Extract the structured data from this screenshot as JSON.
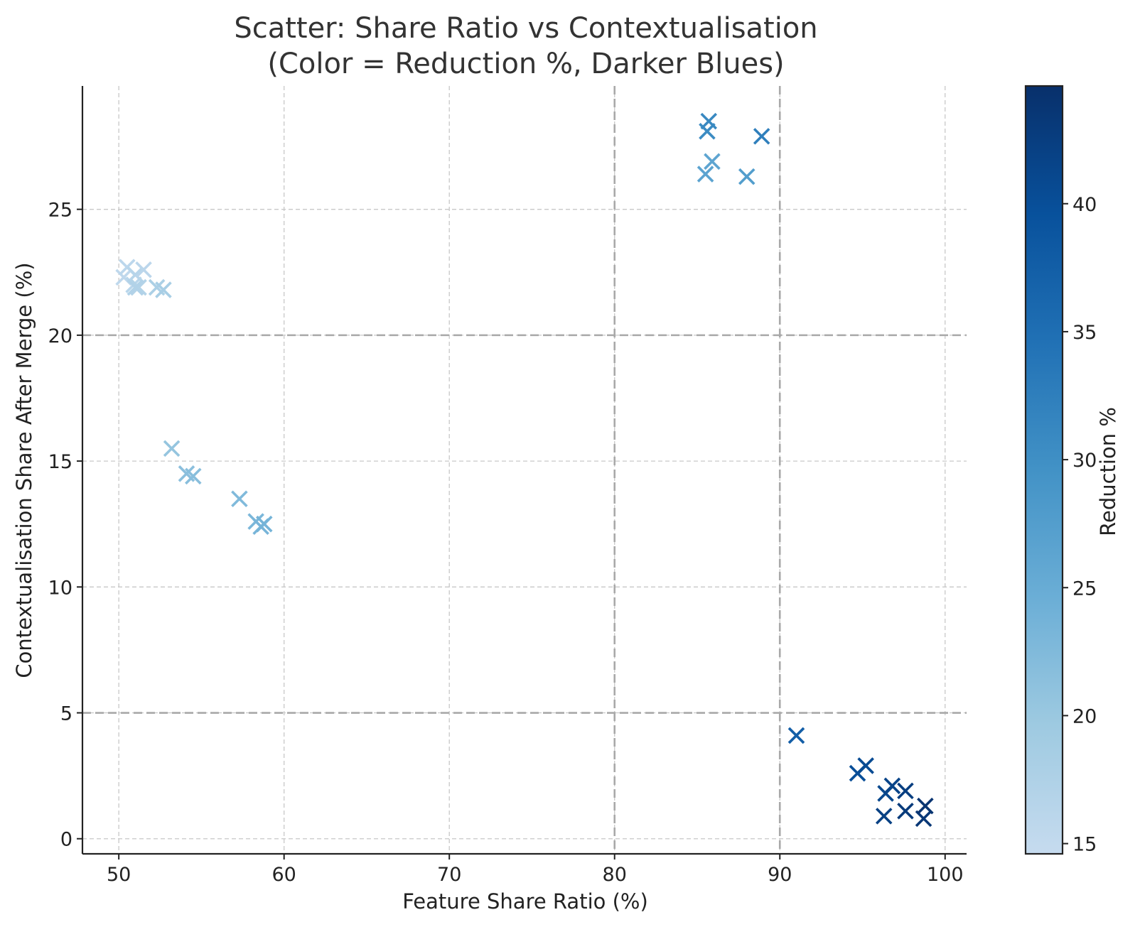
{
  "chart_data": {
    "type": "scatter",
    "title": [
      "Scatter: Share Ratio vs Contextualisation",
      "(Color = Reduction %, Darker Blues)"
    ],
    "xlabel": "Feature Share Ratio (%)",
    "ylabel": "Contextualisation Share After Merge (%)",
    "xlim": [
      47.8,
      101.3
    ],
    "ylim": [
      -0.6,
      29.9
    ],
    "xticks": [
      50,
      60,
      70,
      80,
      90,
      100
    ],
    "yticks": [
      0,
      5,
      10,
      15,
      20,
      25
    ],
    "grid": true,
    "marker": "x",
    "reference_lines": {
      "vertical": [
        80,
        90
      ],
      "horizontal": [
        5,
        20
      ]
    },
    "colorbar": {
      "label": "Reduction %",
      "range": [
        14.6,
        44.6
      ],
      "ticks": [
        15,
        20,
        25,
        30,
        35,
        40
      ],
      "colormap": "Blues",
      "colors": [
        "#c6dbef",
        "#9ecae1",
        "#6baed6",
        "#4292c6",
        "#2171b5",
        "#08519c",
        "#08306b"
      ]
    },
    "points": [
      {
        "x": 50.3,
        "y": 22.3,
        "c": 15.5
      },
      {
        "x": 50.5,
        "y": 22.7,
        "c": 15.8
      },
      {
        "x": 50.9,
        "y": 22.0,
        "c": 16.2
      },
      {
        "x": 51.0,
        "y": 22.4,
        "c": 16.5
      },
      {
        "x": 51.2,
        "y": 21.9,
        "c": 17.0
      },
      {
        "x": 51.5,
        "y": 22.6,
        "c": 16.0
      },
      {
        "x": 51.0,
        "y": 21.9,
        "c": 17.2
      },
      {
        "x": 52.3,
        "y": 21.9,
        "c": 17.8
      },
      {
        "x": 52.7,
        "y": 21.8,
        "c": 18.3
      },
      {
        "x": 53.2,
        "y": 15.5,
        "c": 20.5
      },
      {
        "x": 54.1,
        "y": 14.5,
        "c": 21.5
      },
      {
        "x": 54.5,
        "y": 14.4,
        "c": 21.8
      },
      {
        "x": 57.3,
        "y": 13.5,
        "c": 22.5
      },
      {
        "x": 58.3,
        "y": 12.6,
        "c": 23.0
      },
      {
        "x": 58.6,
        "y": 12.4,
        "c": 23.3
      },
      {
        "x": 58.8,
        "y": 12.5,
        "c": 23.6
      },
      {
        "x": 85.5,
        "y": 26.4,
        "c": 26.5
      },
      {
        "x": 85.9,
        "y": 26.9,
        "c": 26.2
      },
      {
        "x": 85.6,
        "y": 28.1,
        "c": 30.5
      },
      {
        "x": 85.7,
        "y": 28.5,
        "c": 31.0
      },
      {
        "x": 88.0,
        "y": 26.3,
        "c": 27.5
      },
      {
        "x": 88.9,
        "y": 27.9,
        "c": 32.5
      },
      {
        "x": 91.0,
        "y": 4.1,
        "c": 37.5
      },
      {
        "x": 94.7,
        "y": 2.6,
        "c": 40.0
      },
      {
        "x": 95.2,
        "y": 2.9,
        "c": 40.5
      },
      {
        "x": 96.4,
        "y": 1.8,
        "c": 41.0
      },
      {
        "x": 96.8,
        "y": 2.1,
        "c": 41.5
      },
      {
        "x": 96.3,
        "y": 0.9,
        "c": 42.0
      },
      {
        "x": 97.6,
        "y": 1.9,
        "c": 42.5
      },
      {
        "x": 97.6,
        "y": 1.1,
        "c": 43.0
      },
      {
        "x": 98.7,
        "y": 0.8,
        "c": 43.5
      },
      {
        "x": 98.8,
        "y": 1.3,
        "c": 44.0
      }
    ]
  }
}
